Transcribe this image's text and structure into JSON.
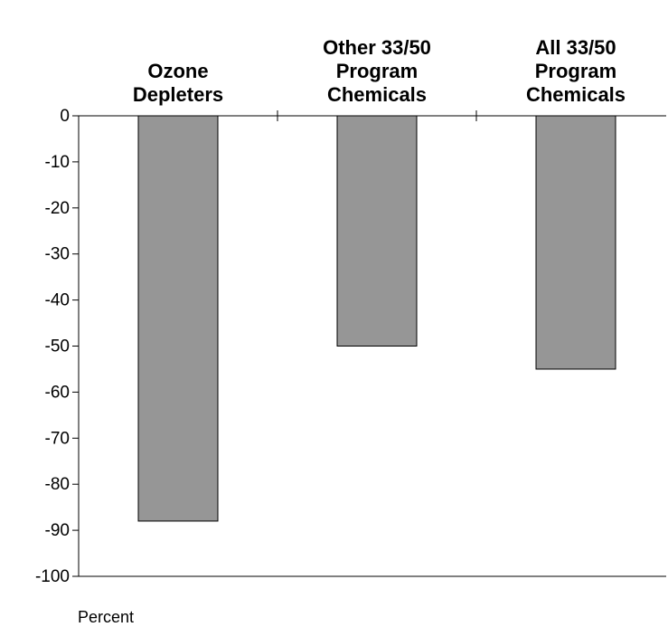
{
  "chart_data": {
    "type": "bar",
    "categories": [
      "Ozone\nDepleters",
      "Other 33/50\nProgram\nChemicals",
      "All 33/50\nProgram\nChemicals"
    ],
    "values": [
      -88,
      -50,
      -55
    ],
    "color": "#969696",
    "ylabel": "Percent",
    "ylim": [
      -100,
      0
    ],
    "yticks": [
      0,
      -10,
      -20,
      -30,
      -40,
      -50,
      -60,
      -70,
      -80,
      -90,
      -100
    ],
    "grid": false
  }
}
